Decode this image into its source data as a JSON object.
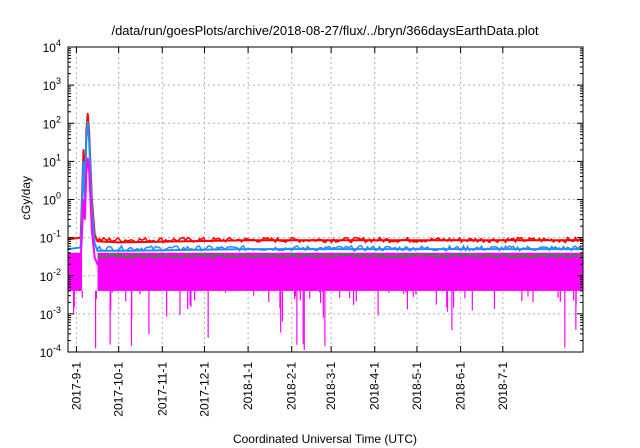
{
  "chart_data": {
    "type": "line",
    "title": "/data/run/goesPlots/archive/2018-08-27/flux/../bryn/366daysEarthData.plot",
    "xlabel": "Coordinated Universal Time (UTC)",
    "ylabel": "cGy/day",
    "yscale": "log",
    "ylim": [
      0.0001,
      10000
    ],
    "y_ticks": [
      {
        "value": 0.0001,
        "base": "10",
        "exp": "-4"
      },
      {
        "value": 0.001,
        "base": "10",
        "exp": "-3"
      },
      {
        "value": 0.01,
        "base": "10",
        "exp": "-2"
      },
      {
        "value": 0.1,
        "base": "10",
        "exp": "-1"
      },
      {
        "value": 1,
        "base": "10",
        "exp": "0"
      },
      {
        "value": 10,
        "base": "10",
        "exp": "1"
      },
      {
        "value": 100,
        "base": "10",
        "exp": "2"
      },
      {
        "value": 1000,
        "base": "10",
        "exp": "3"
      },
      {
        "value": 10000,
        "base": "10",
        "exp": "4"
      }
    ],
    "xlim": [
      "2017-08-26",
      "2018-08-27"
    ],
    "x_ticks": [
      "2017-9-1",
      "2017-10-1",
      "2017-11-1",
      "2017-12-1",
      "2018-1-1",
      "2018-2-1",
      "2018-3-1",
      "2018-4-1",
      "2018-5-1",
      "2018-6-1",
      "2018-7-1"
    ],
    "grid": true,
    "legend": "none",
    "series": [
      {
        "color": "#ff0000",
        "values": [
          {
            "x": "2017-08-26",
            "y": 0.09
          },
          {
            "x": "2017-09-04",
            "y": 0.1
          },
          {
            "x": "2017-09-06",
            "y": 20
          },
          {
            "x": "2017-09-07",
            "y": 1.5
          },
          {
            "x": "2017-09-08",
            "y": 60
          },
          {
            "x": "2017-09-09",
            "y": 180
          },
          {
            "x": "2017-09-10",
            "y": 60
          },
          {
            "x": "2017-09-11",
            "y": 8
          },
          {
            "x": "2017-09-12",
            "y": 1
          },
          {
            "x": "2017-09-14",
            "y": 0.12
          },
          {
            "x": "2017-09-16",
            "y": 0.08
          },
          {
            "x": "2017-10-01",
            "y": 0.075
          },
          {
            "x": "2018-01-01",
            "y": 0.085
          },
          {
            "x": "2018-05-01",
            "y": 0.085
          },
          {
            "x": "2018-08-27",
            "y": 0.085
          }
        ]
      },
      {
        "color": "#1e90ff",
        "values": [
          {
            "x": "2017-08-26",
            "y": 0.05
          },
          {
            "x": "2017-09-04",
            "y": 0.055
          },
          {
            "x": "2017-09-06",
            "y": 10
          },
          {
            "x": "2017-09-07",
            "y": 1
          },
          {
            "x": "2017-09-08",
            "y": 40
          },
          {
            "x": "2017-09-09",
            "y": 110
          },
          {
            "x": "2017-09-10",
            "y": 35
          },
          {
            "x": "2017-09-11",
            "y": 5
          },
          {
            "x": "2017-09-12",
            "y": 0.6
          },
          {
            "x": "2017-09-14",
            "y": 0.07
          },
          {
            "x": "2017-09-16",
            "y": 0.045
          },
          {
            "x": "2017-10-01",
            "y": 0.045
          },
          {
            "x": "2018-01-01",
            "y": 0.05
          },
          {
            "x": "2018-05-01",
            "y": 0.05
          },
          {
            "x": "2018-08-27",
            "y": 0.05
          }
        ]
      },
      {
        "color": "#ff00ff",
        "values": [
          {
            "x": "2017-08-26",
            "y": 0.02
          },
          {
            "x": "2017-09-04",
            "y": 0.025
          },
          {
            "x": "2017-09-06",
            "y": 1
          },
          {
            "x": "2017-09-07",
            "y": 0.3
          },
          {
            "x": "2017-09-08",
            "y": 5
          },
          {
            "x": "2017-09-09",
            "y": 12
          },
          {
            "x": "2017-09-10",
            "y": 6
          },
          {
            "x": "2017-09-11",
            "y": 1
          },
          {
            "x": "2017-09-12",
            "y": 0.15
          },
          {
            "x": "2017-09-14",
            "y": 0.03
          },
          {
            "x": "2017-09-16",
            "y": 0.02
          },
          {
            "x": "2017-10-01",
            "y": 0.02
          },
          {
            "x": "2018-01-01",
            "y": 0.022
          },
          {
            "x": "2018-05-01",
            "y": 0.022
          },
          {
            "x": "2018-08-27",
            "y": 0.022
          }
        ]
      }
    ]
  }
}
